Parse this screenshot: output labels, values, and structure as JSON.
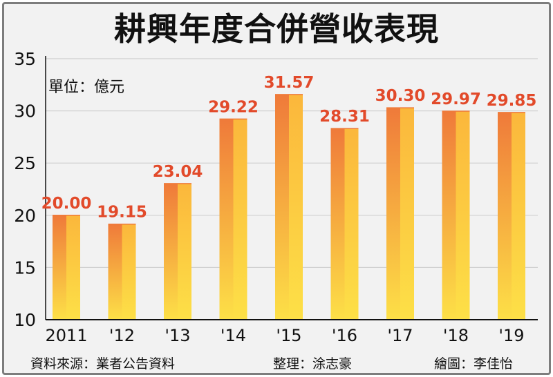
{
  "title": "耕興年度合併營收表現",
  "unit_label": "單位：億元",
  "footer": {
    "source": "資料來源：業者公告資料",
    "compiler": "整理：涂志豪",
    "illustrator": "繪圖：李佳怡"
  },
  "colors": {
    "bar_left": "#ef7a3a",
    "bar_right": "#fbb73c",
    "bar_bottom": "#fde047",
    "value_label": "#e24a2a",
    "grid": "#cfcfcf",
    "axis": "#111111"
  },
  "chart_data": {
    "type": "bar",
    "title": "耕興年度合併營收表現",
    "ylabel": "單位：億元",
    "xlabel": "",
    "categories": [
      "2011",
      "'12",
      "'13",
      "'14",
      "'15",
      "'16",
      "'17",
      "'18",
      "'19"
    ],
    "values": [
      20.0,
      19.15,
      23.04,
      29.22,
      31.57,
      28.31,
      30.3,
      29.97,
      29.85
    ],
    "value_labels": [
      "20.00",
      "19.15",
      "23.04",
      "29.22",
      "31.57",
      "28.31",
      "30.30",
      "29.97",
      "29.85"
    ],
    "ylim": [
      10,
      35
    ],
    "yticks": [
      10,
      15,
      20,
      25,
      30,
      35
    ],
    "grid": true,
    "legend": "none"
  }
}
